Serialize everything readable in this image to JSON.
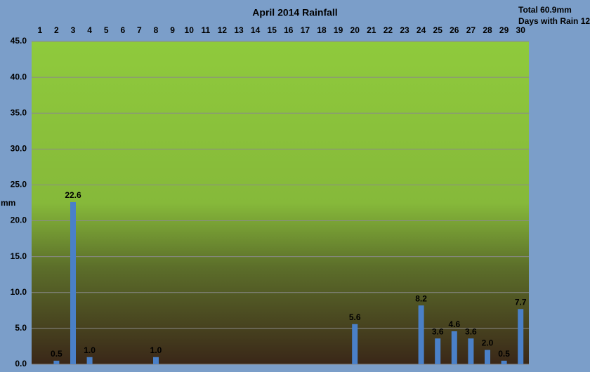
{
  "chart_data": {
    "type": "bar",
    "title": "April 2014 Rainfall",
    "annotations": [
      "Total 60.9mm",
      "Days with Rain 12"
    ],
    "y_label": "mm",
    "categories": [
      "1",
      "2",
      "3",
      "4",
      "5",
      "6",
      "7",
      "8",
      "9",
      "10",
      "11",
      "12",
      "13",
      "14",
      "15",
      "16",
      "17",
      "18",
      "19",
      "20",
      "21",
      "22",
      "23",
      "24",
      "25",
      "26",
      "27",
      "28",
      "29",
      "30"
    ],
    "values": [
      null,
      0.5,
      22.6,
      1.0,
      null,
      null,
      null,
      1.0,
      null,
      null,
      null,
      null,
      null,
      null,
      null,
      null,
      null,
      null,
      null,
      5.6,
      null,
      null,
      null,
      8.2,
      3.6,
      4.6,
      3.6,
      2.0,
      0.5,
      7.7
    ],
    "value_labels": [
      null,
      "0.5",
      "22.6",
      "1.0",
      null,
      null,
      null,
      "1.0",
      null,
      null,
      null,
      null,
      null,
      null,
      null,
      null,
      null,
      null,
      null,
      "5.6",
      null,
      null,
      null,
      "8.2",
      "3.6",
      "4.6",
      "3.6",
      "2.0",
      "0.5",
      "7.7"
    ],
    "color": "#4a80c8",
    "ylim": [
      0,
      45
    ],
    "yticks": [
      {
        "value": 0,
        "label": "0.0"
      },
      {
        "value": 5,
        "label": "5.0"
      },
      {
        "value": 10,
        "label": "10.0"
      },
      {
        "value": 15,
        "label": "15.0"
      },
      {
        "value": 20,
        "label": "20.0"
      },
      {
        "value": 25,
        "label": "25.0"
      },
      {
        "value": 30,
        "label": "30.0"
      },
      {
        "value": 35,
        "label": "35.0"
      },
      {
        "value": 40,
        "label": "40.0"
      },
      {
        "value": 45,
        "label": "45.0"
      }
    ],
    "grid": true
  }
}
